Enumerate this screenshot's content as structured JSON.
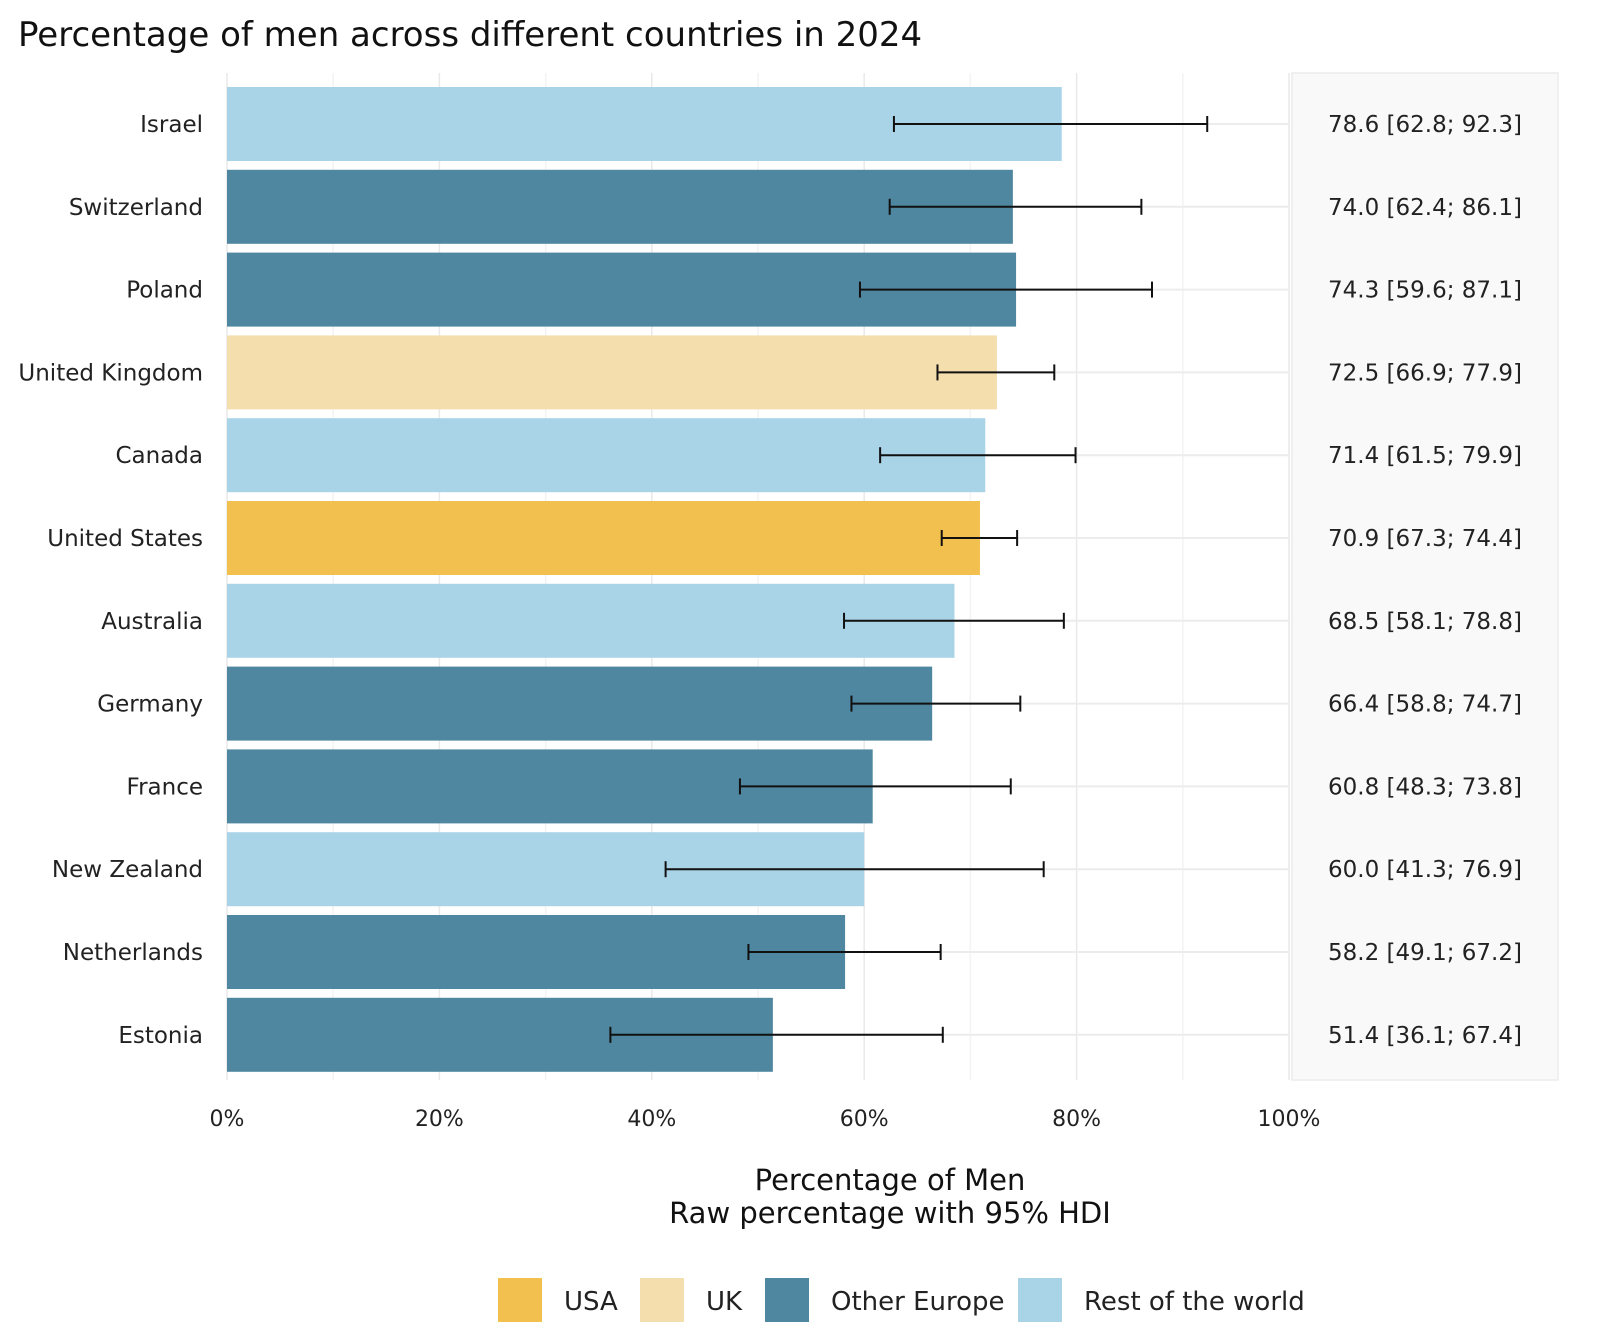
{
  "chart_data": {
    "type": "bar",
    "orientation": "horizontal",
    "title": "Percentage of men across different countries in 2024",
    "xlabel": "Percentage of Men",
    "xlabel_sub": "Raw percentage with 95% HDI",
    "xlim": [
      0,
      100
    ],
    "x_ticks": [
      "0%",
      "20%",
      "40%",
      "60%",
      "80%",
      "100%"
    ],
    "grid": true,
    "legend_position": "bottom",
    "groups": [
      {
        "name": "USA",
        "color": "#f2c04e"
      },
      {
        "name": "UK",
        "color": "#f5deae"
      },
      {
        "name": "Other Europe",
        "color": "#4f87a0"
      },
      {
        "name": "Rest of the world",
        "color": "#a9d3e7"
      }
    ],
    "categories": [
      "Israel",
      "Switzerland",
      "Poland",
      "United Kingdom",
      "Canada",
      "United States",
      "Australia",
      "Germany",
      "France",
      "New Zealand",
      "Netherlands",
      "Estonia"
    ],
    "group_of": [
      "Rest of the world",
      "Other Europe",
      "Other Europe",
      "UK",
      "Rest of the world",
      "USA",
      "Rest of the world",
      "Other Europe",
      "Other Europe",
      "Rest of the world",
      "Other Europe",
      "Other Europe"
    ],
    "values": [
      78.6,
      74.0,
      74.3,
      72.5,
      71.4,
      70.9,
      68.5,
      66.4,
      60.8,
      60.0,
      58.2,
      51.4
    ],
    "lower": [
      62.8,
      62.4,
      59.6,
      66.9,
      61.5,
      67.3,
      58.1,
      58.8,
      48.3,
      41.3,
      49.1,
      36.1
    ],
    "upper": [
      92.3,
      86.1,
      87.1,
      77.9,
      79.9,
      74.4,
      78.8,
      74.7,
      73.8,
      76.9,
      67.2,
      67.4
    ],
    "annotations": [
      "78.6 [62.8; 92.3]",
      "74.0 [62.4; 86.1]",
      "74.3 [59.6; 87.1]",
      "72.5 [66.9; 77.9]",
      "71.4 [61.5; 79.9]",
      "70.9 [67.3; 74.4]",
      "68.5 [58.1; 78.8]",
      "66.4 [58.8; 74.7]",
      "60.8 [48.3; 73.8]",
      "60.0 [41.3; 76.9]",
      "58.2 [49.1; 67.2]",
      "51.4 [36.1; 67.4]"
    ]
  }
}
